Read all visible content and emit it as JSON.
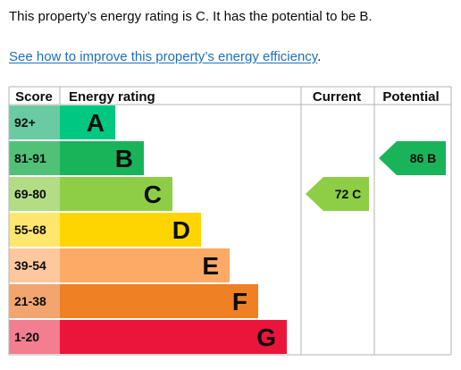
{
  "summary_text": "This property’s energy rating is C. It has the potential to be B.",
  "improve_link_text": "See how to improve this property’s energy efficiency",
  "improve_link_suffix": ".",
  "colors": {
    "link": "#1d70b8",
    "grid": "#b1b4b6",
    "text": "#0b0c0c"
  },
  "chart_data": {
    "type": "bar",
    "headers": {
      "score": "Score",
      "rating": "Energy rating",
      "current": "Current",
      "potential": "Potential"
    },
    "bands": [
      {
        "range": "92+",
        "letter": "A",
        "range_color": "#6acba2",
        "bar_color": "#00c781"
      },
      {
        "range": "81-91",
        "letter": "B",
        "range_color": "#50c177",
        "bar_color": "#19b459"
      },
      {
        "range": "69-80",
        "letter": "C",
        "range_color": "#b2dd85",
        "bar_color": "#8dce46"
      },
      {
        "range": "55-68",
        "letter": "D",
        "range_color": "#ffe76d",
        "bar_color": "#ffd500"
      },
      {
        "range": "39-54",
        "letter": "E",
        "range_color": "#fdc89e",
        "bar_color": "#fcaa65"
      },
      {
        "range": "21-38",
        "letter": "F",
        "range_color": "#f2a56e",
        "bar_color": "#ef8023"
      },
      {
        "range": "1-20",
        "letter": "G",
        "range_color": "#f27e8f",
        "bar_color": "#e9153b"
      }
    ],
    "current": {
      "score": 72,
      "letter": "C",
      "label": "72 C",
      "color": "#8dce46"
    },
    "potential": {
      "score": 86,
      "letter": "B",
      "label": "86 B",
      "color": "#19b459"
    }
  }
}
